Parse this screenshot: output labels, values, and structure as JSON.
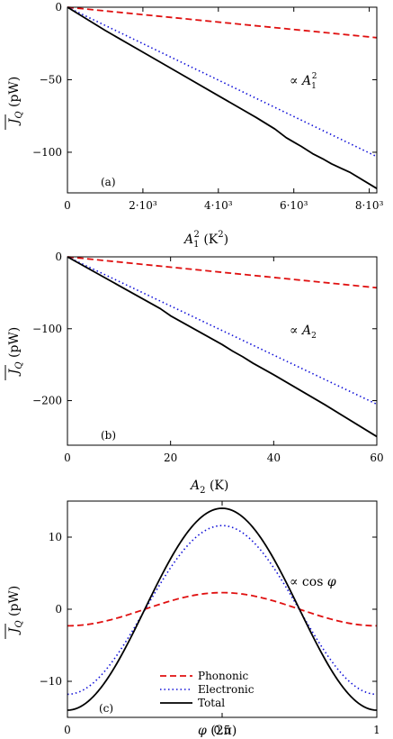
{
  "colors": {
    "phononic": "#e01010",
    "electronic": "#1010d8",
    "total": "#000000",
    "axis": "#000000"
  },
  "chart_data": [
    {
      "type": "line",
      "panel_label": "(a)",
      "xlabel": "A_1^2 (K^2)",
      "ylabel": "J_Q (pW)",
      "annotation": "∝ A_1^2",
      "xlim": [
        0,
        8200
      ],
      "ylim": [
        -128,
        0
      ],
      "xticks": [
        0,
        2000,
        4000,
        6000,
        8000
      ],
      "xtick_labels": [
        "0",
        "2·10³",
        "4·10³",
        "6·10³",
        "8·10³"
      ],
      "yticks": [
        0,
        -50,
        -100
      ],
      "ytick_labels": [
        "0",
        "−50",
        "−100"
      ],
      "series": [
        {
          "key": "phononic",
          "style": "dashed",
          "x": [
            0,
            8200
          ],
          "y": [
            0,
            -21
          ]
        },
        {
          "key": "electronic",
          "style": "dotted",
          "x": [
            0,
            8200
          ],
          "y": [
            0,
            -103
          ]
        },
        {
          "key": "total",
          "style": "solid",
          "x": [
            0,
            1000,
            2000,
            3000,
            4000,
            5000,
            5500,
            5800,
            6000,
            6200,
            6500,
            6800,
            7000,
            7500,
            8200
          ],
          "y": [
            0,
            -16,
            -31,
            -46,
            -61,
            -76,
            -84,
            -90,
            -93,
            -96,
            -101,
            -105,
            -108,
            -114,
            -125
          ]
        }
      ]
    },
    {
      "type": "line",
      "panel_label": "(b)",
      "xlabel": "A_2 (K)",
      "ylabel": "J_Q (pW)",
      "annotation": "∝ A_2",
      "xlim": [
        0,
        60
      ],
      "ylim": [
        -262,
        0
      ],
      "xticks": [
        0,
        20,
        40,
        60
      ],
      "xtick_labels": [
        "0",
        "20",
        "40",
        "60"
      ],
      "yticks": [
        0,
        -100,
        -200
      ],
      "ytick_labels": [
        "0",
        "−100",
        "−200"
      ],
      "series": [
        {
          "key": "phononic",
          "style": "dashed",
          "x": [
            0,
            60
          ],
          "y": [
            0,
            -43
          ]
        },
        {
          "key": "electronic",
          "style": "dotted",
          "x": [
            0,
            60
          ],
          "y": [
            0,
            -205
          ]
        },
        {
          "key": "total",
          "style": "solid",
          "x": [
            0,
            10,
            16,
            18,
            20,
            30,
            32,
            34,
            36,
            40,
            50,
            60
          ],
          "y": [
            0,
            -40,
            -64,
            -72,
            -82,
            -122,
            -131,
            -139,
            -148,
            -164,
            -206,
            -250
          ]
        }
      ]
    },
    {
      "type": "line",
      "panel_label": "(c)",
      "xlabel": "φ (2π)",
      "ylabel": "J_Q (pW)",
      "annotation": "∝ cos φ",
      "xlim": [
        0,
        1
      ],
      "ylim": [
        -15,
        15
      ],
      "xticks": [
        0,
        0.5,
        1
      ],
      "xtick_labels": [
        "0",
        "0.5",
        "1"
      ],
      "yticks": [
        10,
        0,
        -10
      ],
      "ytick_labels": [
        "10",
        "0",
        "−10"
      ],
      "legend": {
        "position": "lower-center",
        "entries": [
          "Phononic",
          "Electronic",
          "Total"
        ]
      },
      "series": [
        {
          "key": "phononic",
          "name": "Phononic",
          "style": "dashed",
          "offset": 0.0,
          "amplitude": 2.3
        },
        {
          "key": "electronic",
          "name": "Electronic",
          "style": "dotted",
          "offset": -0.1,
          "amplitude": 11.7
        },
        {
          "key": "total",
          "name": "Total",
          "style": "solid",
          "offset": 0.0,
          "amplitude": 14.0
        }
      ]
    }
  ]
}
